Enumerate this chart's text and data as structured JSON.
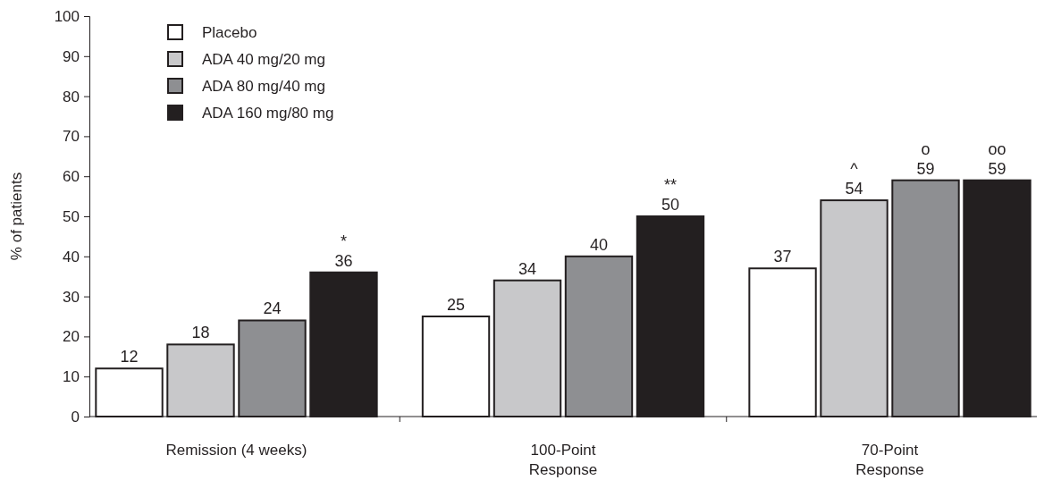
{
  "chart_data": {
    "type": "bar",
    "ylabel": "%  of patients",
    "categories": [
      "Remission (4 weeks)",
      "100-Point\nResponse",
      "70-Point\nResponse"
    ],
    "series": [
      {
        "name": "Placebo",
        "color": "#ffffff",
        "values": [
          12,
          25,
          37
        ],
        "value_labels": [
          "12",
          "25",
          "37"
        ]
      },
      {
        "name": "ADA 40 mg/20 mg",
        "color": "#c8c8ca",
        "values": [
          18,
          34,
          54
        ],
        "value_labels": [
          "18",
          "34",
          "^\n54"
        ]
      },
      {
        "name": "ADA 80 mg/40 mg",
        "color": "#8e8f92",
        "values": [
          24,
          40,
          59
        ],
        "value_labels": [
          "24",
          "40",
          "o\n59"
        ]
      },
      {
        "name": "ADA 160 mg/80 mg",
        "color": "#231f20",
        "values": [
          36,
          50,
          59
        ],
        "value_labels": [
          "*\n36",
          "**\n50",
          "oo\n59"
        ]
      }
    ],
    "ylim": [
      0,
      100
    ],
    "yticks": [
      0,
      10,
      20,
      30,
      40,
      50,
      60,
      70,
      80,
      90,
      100
    ],
    "legend": "top left",
    "grid": false
  }
}
